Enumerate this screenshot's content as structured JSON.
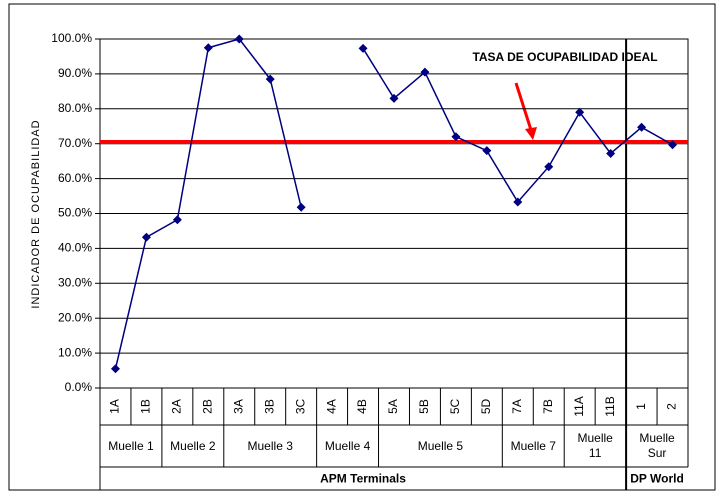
{
  "chart_data": {
    "type": "line",
    "y_axis_label": "INDICADOR DE OCUPABILIDAD",
    "categories": [
      "1A",
      "1B",
      "2A",
      "2B",
      "3A",
      "3B",
      "3C",
      "4A",
      "4B",
      "5A",
      "5B",
      "5C",
      "5D",
      "7A",
      "7B",
      "11A",
      "11B",
      "1",
      "2"
    ],
    "series": [
      {
        "name": "Indicador de ocupabilidad",
        "color": "#000080",
        "values": [
          5.5,
          43.2,
          48.2,
          97.5,
          100,
          88.5,
          51.8,
          null,
          97.3,
          83,
          90.5,
          72,
          68,
          53.3,
          63.4,
          79,
          67.2,
          74.7,
          69.7
        ]
      }
    ],
    "ylim": [
      0,
      100
    ],
    "yticks": [
      {
        "value": 0,
        "label": "0.0%"
      },
      {
        "value": 10,
        "label": "10.0%"
      },
      {
        "value": 20,
        "label": "20.0%"
      },
      {
        "value": 30,
        "label": "30.0%"
      },
      {
        "value": 40,
        "label": "40.0%"
      },
      {
        "value": 50,
        "label": "50.0%"
      },
      {
        "value": 60,
        "label": "60.0%"
      },
      {
        "value": 70,
        "label": "70.0%"
      },
      {
        "value": 80,
        "label": "80.0%"
      },
      {
        "value": 90,
        "label": "90.0%"
      },
      {
        "value": 100,
        "label": "100.0%"
      }
    ],
    "grid": true,
    "reference_line": {
      "value": 70.5,
      "label": "TASA DE OCUPABILIDAD IDEAL",
      "color": "#ff0000"
    },
    "groups": [
      {
        "label": "Muelle 1",
        "span": 2
      },
      {
        "label": "Muelle 2",
        "span": 2
      },
      {
        "label": "Muelle 3",
        "span": 3
      },
      {
        "label": "Muelle 4",
        "span": 2
      },
      {
        "label": "Muelle 5",
        "span": 4
      },
      {
        "label": "Muelle 7",
        "span": 2
      },
      {
        "label": "Muelle\n11",
        "span": 2
      },
      {
        "label": "Muelle\nSur",
        "span": 2
      }
    ],
    "outer_groups": [
      {
        "label": "APM Terminals",
        "span": 17
      },
      {
        "label": "DP World",
        "span": 2
      }
    ]
  }
}
